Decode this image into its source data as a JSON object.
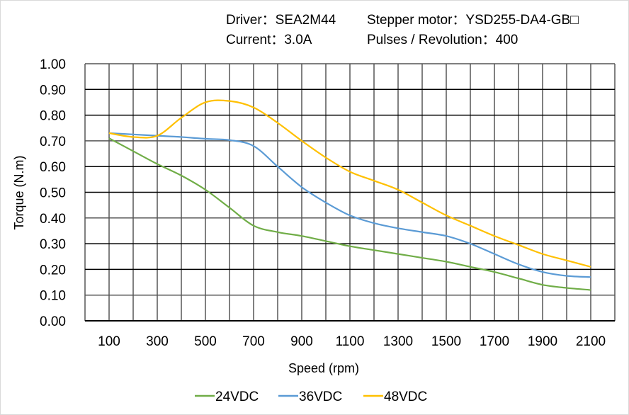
{
  "header": {
    "driver": "Driver：SEA2M44",
    "motor": "Stepper  motor：YSD255-DA4-GB□",
    "current": "Current：3.0A",
    "pulses": "Pulses / Revolution：400"
  },
  "chart_data": {
    "type": "line",
    "title": "",
    "xlabel": "Speed  (rpm)",
    "ylabel": "Torque  (N.m)",
    "xlim": [
      0,
      2200
    ],
    "ylim": [
      0,
      1.0
    ],
    "grid": true,
    "legend_position": "bottom",
    "x_ticks": [
      "100",
      "300",
      "500",
      "700",
      "900",
      "1100",
      "1300",
      "1500",
      "1700",
      "1900",
      "2100"
    ],
    "y_ticks": [
      "0.00",
      "0.10",
      "0.20",
      "0.30",
      "0.40",
      "0.50",
      "0.60",
      "0.70",
      "0.80",
      "0.90",
      "1.00"
    ],
    "x": [
      100,
      200,
      300,
      400,
      500,
      600,
      700,
      800,
      900,
      1000,
      1100,
      1200,
      1300,
      1400,
      1500,
      1600,
      1700,
      1800,
      1900,
      2000,
      2100
    ],
    "series": [
      {
        "name": "24VDC",
        "color": "#70ad47",
        "values": [
          0.71,
          0.66,
          0.61,
          0.565,
          0.51,
          0.44,
          0.37,
          0.345,
          0.33,
          0.31,
          0.29,
          0.275,
          0.26,
          0.245,
          0.23,
          0.21,
          0.19,
          0.165,
          0.14,
          0.128,
          0.12
        ]
      },
      {
        "name": "36VDC",
        "color": "#5b9bd5",
        "values": [
          0.73,
          0.725,
          0.72,
          0.715,
          0.708,
          0.703,
          0.68,
          0.6,
          0.52,
          0.46,
          0.41,
          0.38,
          0.36,
          0.345,
          0.33,
          0.3,
          0.26,
          0.22,
          0.19,
          0.175,
          0.17
        ]
      },
      {
        "name": "48VDC",
        "color": "#ffc000",
        "values": [
          0.73,
          0.715,
          0.72,
          0.79,
          0.85,
          0.855,
          0.83,
          0.77,
          0.7,
          0.635,
          0.58,
          0.545,
          0.51,
          0.46,
          0.41,
          0.37,
          0.33,
          0.295,
          0.26,
          0.235,
          0.21
        ]
      }
    ]
  }
}
